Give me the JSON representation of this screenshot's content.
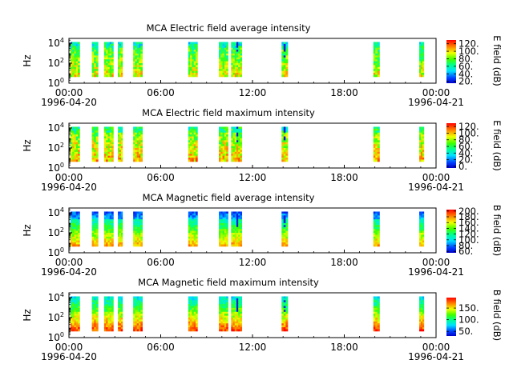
{
  "chart_data": [
    {
      "type": "heatmap",
      "title": "MCA  Electric field average intensity",
      "ylabel": "Hz",
      "y_scale": "log",
      "ylim": [
        1,
        30000
      ],
      "y_ticks": [
        {
          "exp": "0",
          "value": 1
        },
        {
          "exp": "2",
          "value": 100
        },
        {
          "exp": "4",
          "value": 10000
        }
      ],
      "xlim": [
        "1996-04-20T00:00",
        "1996-04-21T00:00"
      ],
      "x_ticks": [
        {
          "label": "00:00",
          "date": "1996-04-20",
          "hour": 0
        },
        {
          "label": "06:00",
          "date": "",
          "hour": 6
        },
        {
          "label": "12:00",
          "date": "",
          "hour": 12
        },
        {
          "label": "18:00",
          "date": "",
          "hour": 18
        },
        {
          "label": "00:00",
          "date": "1996-04-21",
          "hour": 24
        }
      ],
      "colorbar": {
        "label": "E field (dB)",
        "range": [
          15,
          130
        ],
        "ticks": [
          "20.",
          "40.",
          "60.",
          "80.",
          "100.",
          "120."
        ]
      },
      "data_segments_hours": [
        [
          0.1,
          0.7
        ],
        [
          1.5,
          1.9
        ],
        [
          2.3,
          2.9
        ],
        [
          3.2,
          3.5
        ],
        [
          4.2,
          4.8
        ],
        [
          7.8,
          8.4
        ],
        [
          9.8,
          10.4
        ],
        [
          10.6,
          11.3
        ],
        [
          13.9,
          14.3
        ],
        [
          19.9,
          20.3
        ],
        [
          22.9,
          23.2
        ]
      ]
    },
    {
      "type": "heatmap",
      "title": "MCA  Electric field maximum intensity",
      "ylabel": "Hz",
      "y_scale": "log",
      "ylim": [
        1,
        30000
      ],
      "y_ticks": [
        {
          "exp": "0",
          "value": 1
        },
        {
          "exp": "2",
          "value": 100
        },
        {
          "exp": "4",
          "value": 10000
        }
      ],
      "xlim": [
        "1996-04-20T00:00",
        "1996-04-21T00:00"
      ],
      "x_ticks": [
        {
          "label": "00:00",
          "date": "1996-04-20",
          "hour": 0
        },
        {
          "label": "06:00",
          "date": "",
          "hour": 6
        },
        {
          "label": "12:00",
          "date": "",
          "hour": 12
        },
        {
          "label": "18:00",
          "date": "",
          "hour": 18
        },
        {
          "label": "00:00",
          "date": "1996-04-21",
          "hour": 24
        }
      ],
      "colorbar": {
        "label": "E field (dB)",
        "range": [
          -5,
          130
        ],
        "ticks": [
          "0.",
          "20.",
          "40.",
          "60.",
          "80.",
          "100.",
          "120."
        ]
      },
      "data_segments_hours": [
        [
          0.1,
          0.7
        ],
        [
          1.5,
          1.9
        ],
        [
          2.3,
          2.9
        ],
        [
          3.2,
          3.5
        ],
        [
          4.2,
          4.8
        ],
        [
          7.8,
          8.4
        ],
        [
          9.8,
          10.4
        ],
        [
          10.6,
          11.3
        ],
        [
          13.9,
          14.3
        ],
        [
          19.9,
          20.3
        ],
        [
          22.9,
          23.2
        ]
      ]
    },
    {
      "type": "heatmap",
      "title": "MCA  Magnetic field average intensity",
      "ylabel": "Hz",
      "y_scale": "log",
      "ylim": [
        1,
        30000
      ],
      "y_ticks": [
        {
          "exp": "0",
          "value": 1
        },
        {
          "exp": "2",
          "value": 100
        },
        {
          "exp": "4",
          "value": 10000
        }
      ],
      "xlim": [
        "1996-04-20T00:00",
        "1996-04-21T00:00"
      ],
      "x_ticks": [
        {
          "label": "00:00",
          "date": "1996-04-20",
          "hour": 0
        },
        {
          "label": "06:00",
          "date": "",
          "hour": 6
        },
        {
          "label": "12:00",
          "date": "",
          "hour": 12
        },
        {
          "label": "18:00",
          "date": "",
          "hour": 18
        },
        {
          "label": "00:00",
          "date": "1996-04-21",
          "hour": 24
        }
      ],
      "colorbar": {
        "label": "B field (dB)",
        "range": [
          55,
          205
        ],
        "ticks": [
          "60.",
          "80.",
          "100.",
          "120.",
          "140.",
          "160.",
          "180.",
          "200."
        ]
      },
      "data_segments_hours": [
        [
          0.1,
          0.7
        ],
        [
          1.5,
          1.9
        ],
        [
          2.3,
          2.9
        ],
        [
          3.2,
          3.5
        ],
        [
          4.2,
          4.8
        ],
        [
          7.8,
          8.4
        ],
        [
          9.8,
          10.4
        ],
        [
          10.6,
          11.3
        ],
        [
          13.9,
          14.3
        ],
        [
          19.9,
          20.3
        ],
        [
          22.9,
          23.2
        ]
      ]
    },
    {
      "type": "heatmap",
      "title": "MCA  Magnetic field maximum intensity",
      "ylabel": "Hz",
      "y_scale": "log",
      "ylim": [
        1,
        30000
      ],
      "y_ticks": [
        {
          "exp": "0",
          "value": 1
        },
        {
          "exp": "2",
          "value": 100
        },
        {
          "exp": "4",
          "value": 10000
        }
      ],
      "xlim": [
        "1996-04-20T00:00",
        "1996-04-21T00:00"
      ],
      "x_ticks": [
        {
          "label": "00:00",
          "date": "1996-04-20",
          "hour": 0
        },
        {
          "label": "06:00",
          "date": "",
          "hour": 6
        },
        {
          "label": "12:00",
          "date": "",
          "hour": 12
        },
        {
          "label": "18:00",
          "date": "",
          "hour": 18
        },
        {
          "label": "00:00",
          "date": "1996-04-21",
          "hour": 24
        }
      ],
      "colorbar": {
        "label": "B field (dB)",
        "range": [
          30,
          195
        ],
        "ticks": [
          "50.",
          "100.",
          "150."
        ]
      },
      "data_segments_hours": [
        [
          0.1,
          0.7
        ],
        [
          1.5,
          1.9
        ],
        [
          2.3,
          2.9
        ],
        [
          3.2,
          3.5
        ],
        [
          4.2,
          4.8
        ],
        [
          7.8,
          8.4
        ],
        [
          9.8,
          10.4
        ],
        [
          10.6,
          11.3
        ],
        [
          13.9,
          14.3
        ],
        [
          19.9,
          20.3
        ],
        [
          22.9,
          23.2
        ]
      ]
    }
  ]
}
